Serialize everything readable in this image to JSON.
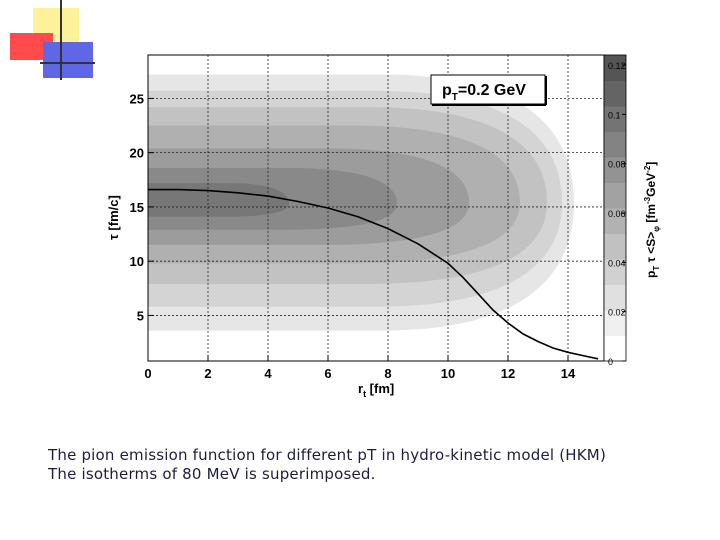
{
  "caption": {
    "line1": "The pion emission function for different pT in hydro-kinetic model (HKM)",
    "line2": "The isotherms of 80 MeV  is superimposed."
  },
  "chart_data": {
    "type": "heatmap",
    "title": "p_T=0.2 GeV",
    "title_main": "p",
    "title_sub": "T",
    "title_rest": "=0.2 GeV",
    "xlabel_main": "r",
    "xlabel_sub": "t",
    "xlabel_rest": " [fm]",
    "ylabel": "τ [fm/c]",
    "colorbar_label": "p_T τ <S>_φ [fm^-3 GeV^-2]",
    "xlim": [
      0,
      15.2
    ],
    "ylim": [
      0.8,
      29
    ],
    "x_ticks": [
      0,
      2,
      4,
      6,
      8,
      10,
      12,
      14
    ],
    "y_ticks": [
      5,
      10,
      15,
      20,
      25
    ],
    "colorbar_range": [
      0,
      0.12
    ],
    "colorbar_ticks": [
      "0",
      "0.02",
      "0.04",
      "0.06",
      "0.08",
      "0.1",
      "0.12"
    ],
    "grid": true,
    "contour_levels": [
      {
        "x_left": 0,
        "x_right": 14.2,
        "y_bottom": 3.6,
        "y_top": 27.2,
        "y_peak": 15.4
      },
      {
        "x_left": 0,
        "x_right": 13.8,
        "y_bottom": 5.8,
        "y_top": 25.7,
        "y_peak": 15.4
      },
      {
        "x_left": 0,
        "x_right": 13.3,
        "y_bottom": 7.9,
        "y_top": 24.2,
        "y_peak": 15.4
      },
      {
        "x_left": 0,
        "x_right": 12.4,
        "y_bottom": 9.8,
        "y_top": 22.5,
        "y_peak": 15.4
      },
      {
        "x_left": 0,
        "x_right": 10.7,
        "y_bottom": 11.5,
        "y_top": 20.4,
        "y_peak": 15.4
      },
      {
        "x_left": 0,
        "x_right": 8.3,
        "y_bottom": 12.9,
        "y_top": 18.6,
        "y_peak": 15.3
      },
      {
        "x_left": 0,
        "x_right": 4.7,
        "y_bottom": 14.1,
        "y_top": 17.2,
        "y_peak": 15.3
      }
    ],
    "isotherm_80MeV": {
      "x": [
        0,
        1,
        2,
        3,
        4,
        5,
        6,
        7,
        8,
        9,
        10,
        10.5,
        11,
        11.5,
        12,
        12.5,
        13,
        13.5,
        14,
        14.5,
        15
      ],
      "y": [
        16.6,
        16.6,
        16.5,
        16.3,
        16.0,
        15.5,
        14.9,
        14.1,
        13.0,
        11.6,
        9.8,
        8.5,
        7.0,
        5.5,
        4.3,
        3.3,
        2.6,
        2.0,
        1.6,
        1.3,
        1.0
      ]
    }
  }
}
